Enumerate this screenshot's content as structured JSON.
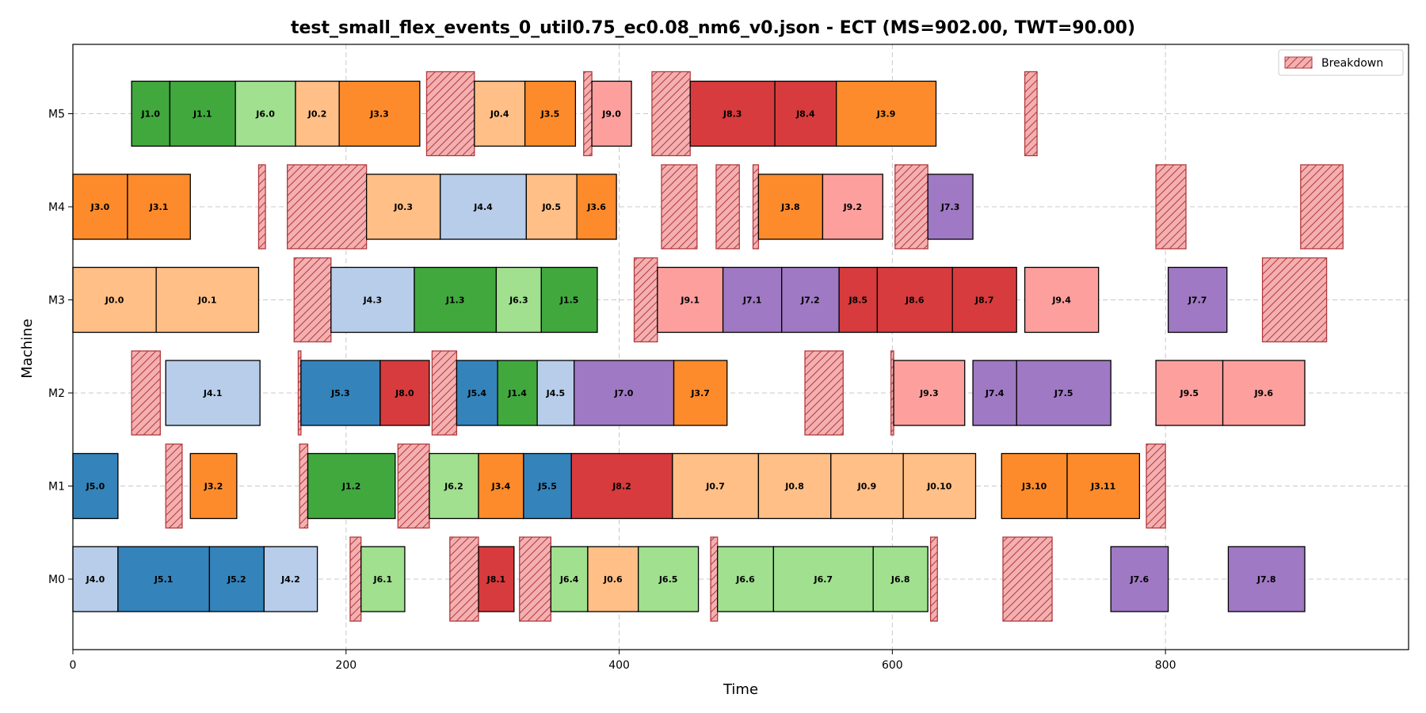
{
  "chart_data": {
    "type": "gantt",
    "title": "test_small_flex_events_0_util0.75_ec0.08_nm6_v0.json - ECT (MS=902.00, TWT=90.00)",
    "xlabel": "Time",
    "ylabel": "Machine",
    "xlim": [
      0,
      978
    ],
    "xticks": [
      0,
      200,
      400,
      600,
      800
    ],
    "machines": [
      "M0",
      "M1",
      "M2",
      "M3",
      "M4",
      "M5"
    ],
    "grid": true,
    "legend": {
      "position": "top-right",
      "entries": [
        "Breakdown"
      ]
    },
    "job_colors": {
      "J0": "#ffbf86",
      "J1": "#41a83e",
      "J3": "#fd8b2b",
      "J4": "#b7cde9",
      "J5": "#3483bb",
      "J6": "#a0e08f",
      "J7": "#9f79c3",
      "J8": "#d73b3d",
      "J9": "#fda09d"
    },
    "breakdown_color": "#f4b0b1",
    "operations": [
      {
        "m": "M0",
        "label": "J4.0",
        "job": "J4",
        "start": 0,
        "end": 33
      },
      {
        "m": "M0",
        "label": "J5.1",
        "job": "J5",
        "start": 33,
        "end": 100
      },
      {
        "m": "M0",
        "label": "J5.2",
        "job": "J5",
        "start": 100,
        "end": 140
      },
      {
        "m": "M0",
        "label": "J4.2",
        "job": "J4",
        "start": 140,
        "end": 179
      },
      {
        "m": "M0",
        "label": "J6.1",
        "job": "J6",
        "start": 211,
        "end": 243
      },
      {
        "m": "M0",
        "label": "J8.1",
        "job": "J8",
        "start": 297,
        "end": 323
      },
      {
        "m": "M0",
        "label": "J6.4",
        "job": "J6",
        "start": 350,
        "end": 377
      },
      {
        "m": "M0",
        "label": "J0.6",
        "job": "J0",
        "start": 377,
        "end": 414
      },
      {
        "m": "M0",
        "label": "J6.5",
        "job": "J6",
        "start": 414,
        "end": 458
      },
      {
        "m": "M0",
        "label": "J6.6",
        "job": "J6",
        "start": 472,
        "end": 513
      },
      {
        "m": "M0",
        "label": "J6.7",
        "job": "J6",
        "start": 513,
        "end": 586
      },
      {
        "m": "M0",
        "label": "J6.8",
        "job": "J6",
        "start": 586,
        "end": 626
      },
      {
        "m": "M0",
        "label": "J7.6",
        "job": "J7",
        "start": 760,
        "end": 802
      },
      {
        "m": "M0",
        "label": "J7.8",
        "job": "J7",
        "start": 846,
        "end": 902
      },
      {
        "m": "M1",
        "label": "J5.0",
        "job": "J5",
        "start": 0,
        "end": 33
      },
      {
        "m": "M1",
        "label": "J3.2",
        "job": "J3",
        "start": 86,
        "end": 120
      },
      {
        "m": "M1",
        "label": "J1.2",
        "job": "J1",
        "start": 172,
        "end": 236
      },
      {
        "m": "M1",
        "label": "J6.2",
        "job": "J6",
        "start": 261,
        "end": 297
      },
      {
        "m": "M1",
        "label": "J3.4",
        "job": "J3",
        "start": 297,
        "end": 330
      },
      {
        "m": "M1",
        "label": "J5.5",
        "job": "J5",
        "start": 330,
        "end": 365
      },
      {
        "m": "M1",
        "label": "J8.2",
        "job": "J8",
        "start": 365,
        "end": 439
      },
      {
        "m": "M1",
        "label": "J0.7",
        "job": "J0",
        "start": 439,
        "end": 502
      },
      {
        "m": "M1",
        "label": "J0.8",
        "job": "J0",
        "start": 502,
        "end": 555
      },
      {
        "m": "M1",
        "label": "J0.9",
        "job": "J0",
        "start": 555,
        "end": 608
      },
      {
        "m": "M1",
        "label": "J0.10",
        "job": "J0",
        "start": 608,
        "end": 661
      },
      {
        "m": "M1",
        "label": "J3.10",
        "job": "J3",
        "start": 680,
        "end": 728
      },
      {
        "m": "M1",
        "label": "J3.11",
        "job": "J3",
        "start": 728,
        "end": 781
      },
      {
        "m": "M2",
        "label": "J4.1",
        "job": "J4",
        "start": 68,
        "end": 137
      },
      {
        "m": "M2",
        "label": "J5.3",
        "job": "J5",
        "start": 167,
        "end": 225
      },
      {
        "m": "M2",
        "label": "J8.0",
        "job": "J8",
        "start": 225,
        "end": 261
      },
      {
        "m": "M2",
        "label": "J5.4",
        "job": "J5",
        "start": 281,
        "end": 311
      },
      {
        "m": "M2",
        "label": "J1.4",
        "job": "J1",
        "start": 311,
        "end": 340
      },
      {
        "m": "M2",
        "label": "J4.5",
        "job": "J4",
        "start": 340,
        "end": 367
      },
      {
        "m": "M2",
        "label": "J7.0",
        "job": "J7",
        "start": 367,
        "end": 440
      },
      {
        "m": "M2",
        "label": "J3.7",
        "job": "J3",
        "start": 440,
        "end": 479
      },
      {
        "m": "M2",
        "label": "J9.3",
        "job": "J9",
        "start": 601,
        "end": 653
      },
      {
        "m": "M2",
        "label": "J7.4",
        "job": "J7",
        "start": 659,
        "end": 691
      },
      {
        "m": "M2",
        "label": "J7.5",
        "job": "J7",
        "start": 691,
        "end": 760
      },
      {
        "m": "M2",
        "label": "J9.5",
        "job": "J9",
        "start": 793,
        "end": 842
      },
      {
        "m": "M2",
        "label": "J9.6",
        "job": "J9",
        "start": 842,
        "end": 902
      },
      {
        "m": "M3",
        "label": "J0.0",
        "job": "J0",
        "start": 0,
        "end": 61
      },
      {
        "m": "M3",
        "label": "J0.1",
        "job": "J0",
        "start": 61,
        "end": 136
      },
      {
        "m": "M3",
        "label": "J4.3",
        "job": "J4",
        "start": 189,
        "end": 250
      },
      {
        "m": "M3",
        "label": "J1.3",
        "job": "J1",
        "start": 250,
        "end": 310
      },
      {
        "m": "M3",
        "label": "J6.3",
        "job": "J6",
        "start": 310,
        "end": 343
      },
      {
        "m": "M3",
        "label": "J1.5",
        "job": "J1",
        "start": 343,
        "end": 384
      },
      {
        "m": "M3",
        "label": "J9.1",
        "job": "J9",
        "start": 428,
        "end": 476
      },
      {
        "m": "M3",
        "label": "J7.1",
        "job": "J7",
        "start": 476,
        "end": 519
      },
      {
        "m": "M3",
        "label": "J7.2",
        "job": "J7",
        "start": 519,
        "end": 561
      },
      {
        "m": "M3",
        "label": "J8.5",
        "job": "J8",
        "start": 561,
        "end": 589
      },
      {
        "m": "M3",
        "label": "J8.6",
        "job": "J8",
        "start": 589,
        "end": 644
      },
      {
        "m": "M3",
        "label": "J8.7",
        "job": "J8",
        "start": 644,
        "end": 691
      },
      {
        "m": "M3",
        "label": "J9.4",
        "job": "J9",
        "start": 697,
        "end": 751
      },
      {
        "m": "M3",
        "label": "J7.7",
        "job": "J7",
        "start": 802,
        "end": 845
      },
      {
        "m": "M4",
        "label": "J3.0",
        "job": "J3",
        "start": 0,
        "end": 40
      },
      {
        "m": "M4",
        "label": "J3.1",
        "job": "J3",
        "start": 40,
        "end": 86
      },
      {
        "m": "M4",
        "label": "J0.3",
        "job": "J0",
        "start": 215,
        "end": 269
      },
      {
        "m": "M4",
        "label": "J4.4",
        "job": "J4",
        "start": 269,
        "end": 332
      },
      {
        "m": "M4",
        "label": "J0.5",
        "job": "J0",
        "start": 332,
        "end": 369
      },
      {
        "m": "M4",
        "label": "J3.6",
        "job": "J3",
        "start": 369,
        "end": 398
      },
      {
        "m": "M4",
        "label": "J3.8",
        "job": "J3",
        "start": 502,
        "end": 549
      },
      {
        "m": "M4",
        "label": "J9.2",
        "job": "J9",
        "start": 549,
        "end": 593
      },
      {
        "m": "M4",
        "label": "J7.3",
        "job": "J7",
        "start": 626,
        "end": 659
      },
      {
        "m": "M5",
        "label": "J1.0",
        "job": "J1",
        "start": 43,
        "end": 71
      },
      {
        "m": "M5",
        "label": "J1.1",
        "job": "J1",
        "start": 71,
        "end": 119
      },
      {
        "m": "M5",
        "label": "J6.0",
        "job": "J6",
        "start": 119,
        "end": 163
      },
      {
        "m": "M5",
        "label": "J0.2",
        "job": "J0",
        "start": 163,
        "end": 195
      },
      {
        "m": "M5",
        "label": "J3.3",
        "job": "J3",
        "start": 195,
        "end": 254
      },
      {
        "m": "M5",
        "label": "J0.4",
        "job": "J0",
        "start": 294,
        "end": 331
      },
      {
        "m": "M5",
        "label": "J3.5",
        "job": "J3",
        "start": 331,
        "end": 368
      },
      {
        "m": "M5",
        "label": "J9.0",
        "job": "J9",
        "start": 380,
        "end": 409
      },
      {
        "m": "M5",
        "label": "J8.3",
        "job": "J8",
        "start": 452,
        "end": 514
      },
      {
        "m": "M5",
        "label": "J8.4",
        "job": "J8",
        "start": 514,
        "end": 559
      },
      {
        "m": "M5",
        "label": "J3.9",
        "job": "J3",
        "start": 559,
        "end": 632
      }
    ],
    "breakdowns": [
      {
        "m": "M0",
        "start": 203,
        "end": 211
      },
      {
        "m": "M0",
        "start": 276,
        "end": 297
      },
      {
        "m": "M0",
        "start": 327,
        "end": 350
      },
      {
        "m": "M0",
        "start": 467,
        "end": 472
      },
      {
        "m": "M0",
        "start": 628,
        "end": 633
      },
      {
        "m": "M0",
        "start": 681,
        "end": 717
      },
      {
        "m": "M1",
        "start": 68,
        "end": 80
      },
      {
        "m": "M1",
        "start": 166,
        "end": 172
      },
      {
        "m": "M1",
        "start": 238,
        "end": 261
      },
      {
        "m": "M1",
        "start": 786,
        "end": 800
      },
      {
        "m": "M2",
        "start": 43,
        "end": 64
      },
      {
        "m": "M2",
        "start": 165,
        "end": 167
      },
      {
        "m": "M2",
        "start": 263,
        "end": 281
      },
      {
        "m": "M2",
        "start": 536,
        "end": 564
      },
      {
        "m": "M2",
        "start": 599,
        "end": 601
      },
      {
        "m": "M3",
        "start": 162,
        "end": 189
      },
      {
        "m": "M3",
        "start": 411,
        "end": 428
      },
      {
        "m": "M3",
        "start": 871,
        "end": 918
      },
      {
        "m": "M4",
        "start": 136,
        "end": 141
      },
      {
        "m": "M4",
        "start": 157,
        "end": 215
      },
      {
        "m": "M4",
        "start": 431,
        "end": 457
      },
      {
        "m": "M4",
        "start": 471,
        "end": 488
      },
      {
        "m": "M4",
        "start": 498,
        "end": 502
      },
      {
        "m": "M4",
        "start": 602,
        "end": 626
      },
      {
        "m": "M4",
        "start": 793,
        "end": 815
      },
      {
        "m": "M4",
        "start": 899,
        "end": 930
      },
      {
        "m": "M5",
        "start": 259,
        "end": 294
      },
      {
        "m": "M5",
        "start": 374,
        "end": 380
      },
      {
        "m": "M5",
        "start": 424,
        "end": 452
      },
      {
        "m": "M5",
        "start": 697,
        "end": 706
      }
    ]
  }
}
